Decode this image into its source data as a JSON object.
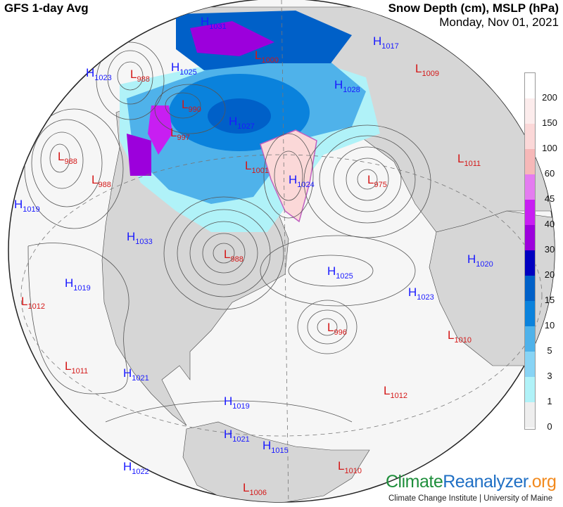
{
  "header": {
    "title": "GFS 1-day Avg",
    "variable": "Snow Depth (cm), MSLP (hPa)",
    "date": "Monday, Nov 01, 2021"
  },
  "legend": {
    "labels": [
      "200",
      "150",
      "100",
      "60",
      "45",
      "40",
      "30",
      "20",
      "15",
      "10",
      "5",
      "3",
      "1",
      "0"
    ],
    "colors": [
      "#ffffff",
      "#fcecec",
      "#fbd8d8",
      "#f6b8b8",
      "#e47cf0",
      "#c81ef2",
      "#9c00dc",
      "#0000c0",
      "#0060c8",
      "#0a82dc",
      "#4fb2ea",
      "#88d4f5",
      "#b0f2f8",
      "#eeeeee",
      "#ffffff"
    ]
  },
  "pressure_systems": [
    {
      "type": "H",
      "value": "1031"
    },
    {
      "type": "L",
      "value": "1000"
    },
    {
      "type": "H",
      "value": "1017"
    },
    {
      "type": "L",
      "value": "1009"
    },
    {
      "type": "H",
      "value": "1023"
    },
    {
      "type": "L",
      "value": "988"
    },
    {
      "type": "H",
      "value": "1025"
    },
    {
      "type": "L",
      "value": "990"
    },
    {
      "type": "H",
      "value": "1028"
    },
    {
      "type": "H",
      "value": "1027"
    },
    {
      "type": "L",
      "value": "997"
    },
    {
      "type": "L",
      "value": "988"
    },
    {
      "type": "L",
      "value": "988"
    },
    {
      "type": "L",
      "value": "1001"
    },
    {
      "type": "H",
      "value": "1024"
    },
    {
      "type": "L",
      "value": "975"
    },
    {
      "type": "L",
      "value": "1011"
    },
    {
      "type": "H",
      "value": "1019"
    },
    {
      "type": "H",
      "value": "1033"
    },
    {
      "type": "L",
      "value": "988"
    },
    {
      "type": "H",
      "value": "1025"
    },
    {
      "type": "H",
      "value": "1020"
    },
    {
      "type": "H",
      "value": "1019"
    },
    {
      "type": "L",
      "value": "1012"
    },
    {
      "type": "H",
      "value": "1023"
    },
    {
      "type": "L",
      "value": "996"
    },
    {
      "type": "L",
      "value": "1010"
    },
    {
      "type": "L",
      "value": "1011"
    },
    {
      "type": "H",
      "value": "1021"
    },
    {
      "type": "L",
      "value": "1012"
    },
    {
      "type": "H",
      "value": "1019"
    },
    {
      "type": "H",
      "value": "1021"
    },
    {
      "type": "H",
      "value": "1015"
    },
    {
      "type": "H",
      "value": "1022"
    },
    {
      "type": "L",
      "value": "1010"
    },
    {
      "type": "L",
      "value": "1006"
    }
  ],
  "footer": {
    "logo_part1": "Climate",
    "logo_part2": "Reanalyzer",
    "logo_part3": ".org",
    "credit": "Climate Change Institute | University of Maine"
  }
}
